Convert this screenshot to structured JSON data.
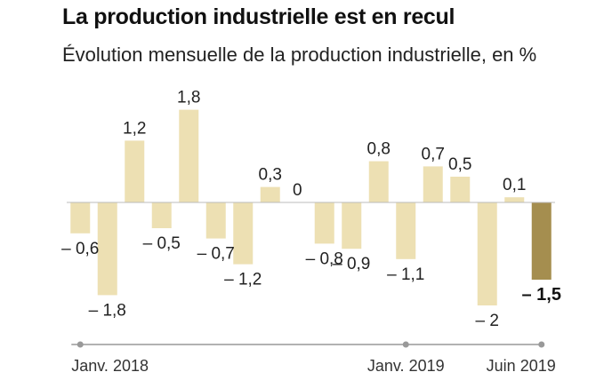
{
  "header": {
    "title": "La production industrielle est en recul",
    "subtitle": "Évolution mensuelle de la production industrielle, en %"
  },
  "colors": {
    "bar": "#ede0b3",
    "bar_highlight": "#a58e4f",
    "axis": "#999999",
    "baseline": "#bbbbbb"
  },
  "chart_data": {
    "type": "bar",
    "title": "La production industrielle est en recul",
    "subtitle": "Évolution mensuelle de la production industrielle, en %",
    "categories": [
      "2018-01",
      "2018-02",
      "2018-03",
      "2018-04",
      "2018-05",
      "2018-06",
      "2018-07",
      "2018-08",
      "2018-09",
      "2018-10",
      "2018-11",
      "2018-12",
      "2019-01",
      "2019-02",
      "2019-03",
      "2019-04",
      "2019-05",
      "2019-06"
    ],
    "values": [
      -0.6,
      -1.8,
      1.2,
      -0.5,
      1.8,
      -0.7,
      -1.2,
      0.3,
      0,
      -0.8,
      -0.9,
      0.8,
      -1.1,
      0.7,
      0.5,
      -2,
      0.1,
      -1.5
    ],
    "value_labels": [
      "– 0,6",
      "– 1,8",
      "1,2",
      "– 0,5",
      "1,8",
      "– 0,7",
      "– 1,2",
      "0,3",
      "0",
      "– 0,8",
      "– 0,9",
      "0,8",
      "– 1,1",
      "0,7",
      "0,5",
      "– 2",
      "0,1",
      "– 1,5"
    ],
    "highlight_index": 17,
    "tick_labels": [
      {
        "index": 0,
        "label": "Janv. 2018"
      },
      {
        "index": 12,
        "label": "Janv. 2019"
      },
      {
        "index": 17,
        "label": "Juin 2019"
      }
    ],
    "ylim": [
      -2.5,
      2.2
    ],
    "grid": false,
    "legend": "none"
  }
}
